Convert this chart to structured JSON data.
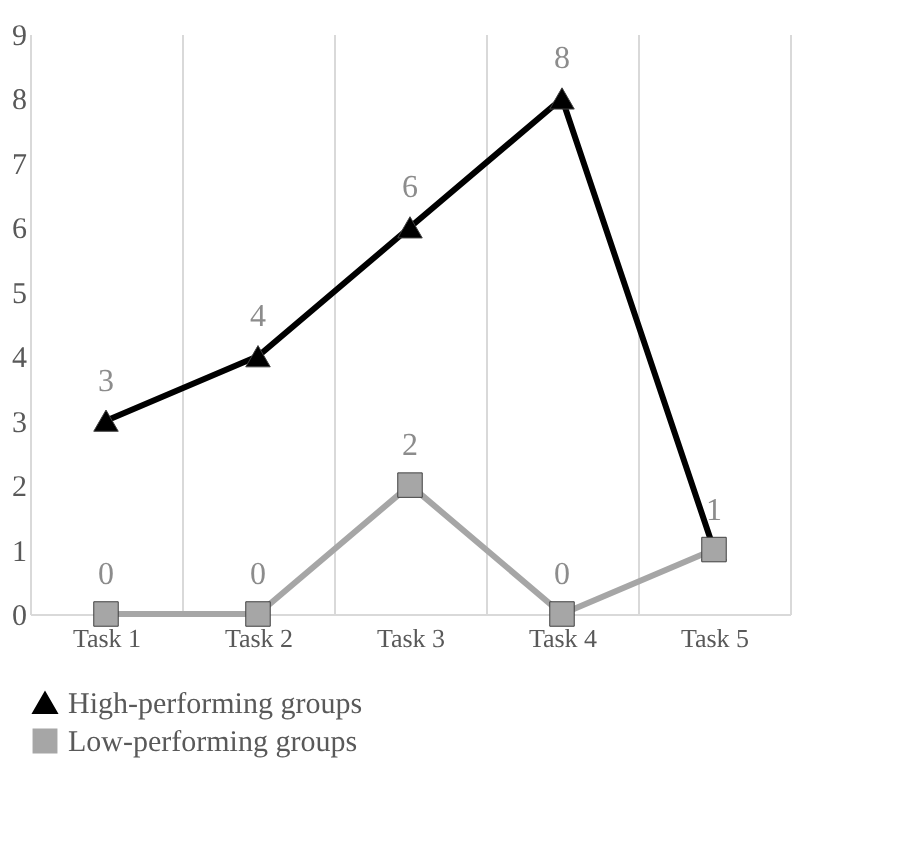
{
  "chart_data": {
    "type": "line",
    "categories": [
      "Task 1",
      "Task 2",
      "Task 3",
      "Task 4",
      "Task 5"
    ],
    "ylim": [
      0,
      9
    ],
    "yticks": [
      0,
      1,
      2,
      3,
      4,
      5,
      6,
      7,
      8,
      9
    ],
    "grid": "x",
    "legend": "bottom",
    "line_style": "solid",
    "series": [
      {
        "name": "High-performing groups",
        "color": "#000000",
        "marker": "triangle",
        "values": [
          3,
          4,
          6,
          8,
          1
        ],
        "value_labels": [
          "3",
          "4",
          "6",
          "8",
          null
        ]
      },
      {
        "name": "Low-performing groups",
        "color": "#a6a6a6",
        "marker": "square",
        "values": [
          0,
          0,
          2,
          0,
          1
        ],
        "value_labels": [
          "0",
          "0",
          "2",
          "0",
          "1"
        ]
      }
    ]
  }
}
